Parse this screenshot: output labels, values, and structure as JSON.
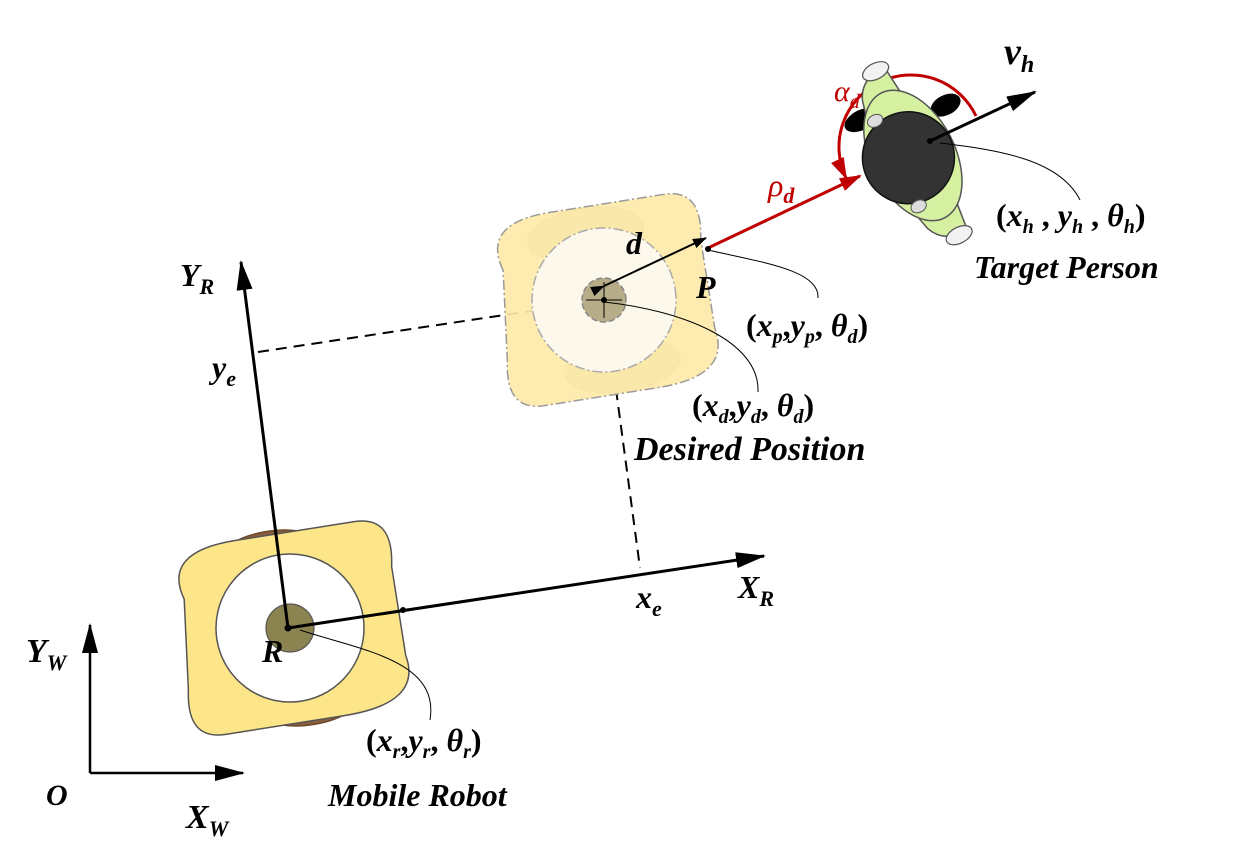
{
  "world_frame": {
    "origin": "O",
    "x_axis": {
      "base": "X",
      "sub": "W"
    },
    "y_axis": {
      "base": "Y",
      "sub": "W"
    }
  },
  "robot_frame": {
    "x_axis": {
      "base": "X",
      "sub": "R"
    },
    "y_axis": {
      "base": "Y",
      "sub": "R"
    },
    "x_error": {
      "base": "x",
      "sub": "e"
    },
    "y_error": {
      "base": "y",
      "sub": "e"
    },
    "center_label": "R"
  },
  "mobile_robot": {
    "pose": {
      "x": "x",
      "xs": "r",
      "y": "y",
      "ys": "r",
      "th": "θ",
      "ths": "r"
    },
    "title": "Mobile Robot"
  },
  "desired_position": {
    "distance_label": "d",
    "point_label": "P",
    "pose_p": {
      "x": "x",
      "xs": "p",
      "y": "y",
      "ys": "p",
      "th": "θ",
      "ths": "d"
    },
    "pose_d": {
      "x": "x",
      "xs": "d",
      "y": "y",
      "ys": "d",
      "th": "θ",
      "ths": "d"
    },
    "title": "Desired Position"
  },
  "target_person": {
    "velocity": {
      "base": "v",
      "sub": "h"
    },
    "rho": {
      "base": "ρ",
      "sub": "d"
    },
    "alpha": {
      "base": "α",
      "sub": "d"
    },
    "pose": {
      "x": "x",
      "xs": "h",
      "y": "y",
      "ys": "h",
      "th": "θ",
      "ths": "h"
    },
    "title": "Target Person"
  },
  "colors": {
    "robot_body": "#fde58a",
    "robot_wheel": "#8b5e3c",
    "robot_center": "#8b8350",
    "ghost_body": "#fde9a8",
    "ghost_wheel": "#d8c8b8",
    "person_shirt": "#d4f0a0",
    "person_head": "#333333",
    "red": "#c00000"
  }
}
